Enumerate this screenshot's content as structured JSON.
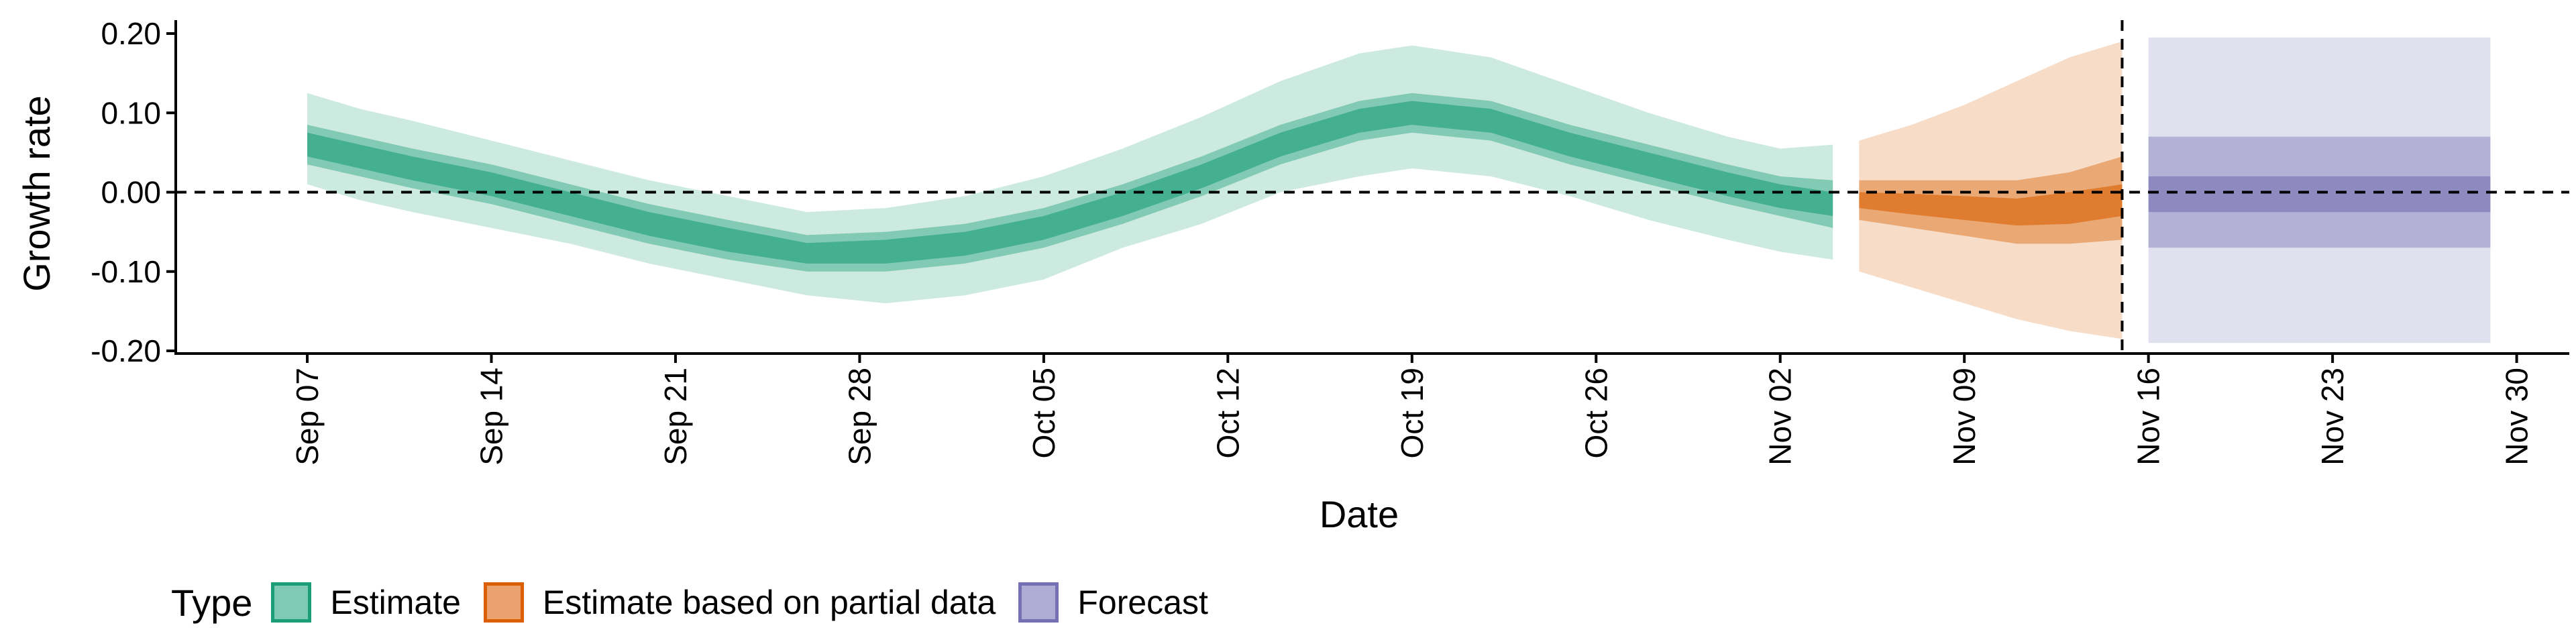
{
  "chart_data": {
    "type": "area",
    "xlabel": "Date",
    "ylabel": "Growth rate",
    "ylim": [
      -0.2,
      0.2
    ],
    "y_ticks": [
      "-0.20",
      "-0.10",
      "0.00",
      "0.10",
      "0.20"
    ],
    "y_tick_values": [
      -0.2,
      -0.1,
      0.0,
      0.1,
      0.2
    ],
    "x_range": [
      "2020-09-02",
      "2020-12-02"
    ],
    "x_ticks": [
      "Sep 07",
      "Sep 14",
      "Sep 21",
      "Sep 28",
      "Oct 05",
      "Oct 12",
      "Oct 19",
      "Oct 26",
      "Nov 02",
      "Nov 09",
      "Nov 16",
      "Nov 23",
      "Nov 30"
    ],
    "x_tick_dates": [
      "2020-09-07",
      "2020-09-14",
      "2020-09-21",
      "2020-09-28",
      "2020-10-05",
      "2020-10-12",
      "2020-10-19",
      "2020-10-26",
      "2020-11-02",
      "2020-11-09",
      "2020-11-16",
      "2020-11-23",
      "2020-11-30"
    ],
    "reference_lines": [
      {
        "orientation": "horizontal",
        "y": 0.0,
        "style": "dashed"
      },
      {
        "orientation": "vertical",
        "x": "2020-11-15",
        "style": "dashed"
      }
    ],
    "grid": false,
    "legend_position": "bottom",
    "series": [
      {
        "name": "Estimate",
        "color": "#1b9e77",
        "x": [
          "2020-09-07",
          "2020-09-09",
          "2020-09-11",
          "2020-09-14",
          "2020-09-17",
          "2020-09-20",
          "2020-09-23",
          "2020-09-26",
          "2020-09-29",
          "2020-10-02",
          "2020-10-05",
          "2020-10-08",
          "2020-10-11",
          "2020-10-14",
          "2020-10-17",
          "2020-10-19",
          "2020-10-22",
          "2020-10-25",
          "2020-10-28",
          "2020-10-31",
          "2020-11-02",
          "2020-11-04"
        ],
        "median": [
          0.06,
          0.045,
          0.03,
          0.01,
          -0.015,
          -0.04,
          -0.06,
          -0.077,
          -0.075,
          -0.065,
          -0.045,
          -0.015,
          0.02,
          0.06,
          0.09,
          0.1,
          0.09,
          0.06,
          0.035,
          0.01,
          -0.005,
          -0.015
        ],
        "lower_20": [
          0.045,
          0.03,
          0.015,
          -0.005,
          -0.03,
          -0.055,
          -0.075,
          -0.09,
          -0.09,
          -0.08,
          -0.06,
          -0.03,
          0.005,
          0.045,
          0.075,
          0.085,
          0.075,
          0.045,
          0.02,
          -0.005,
          -0.02,
          -0.03
        ],
        "upper_20": [
          0.075,
          0.06,
          0.045,
          0.025,
          0.0,
          -0.025,
          -0.045,
          -0.064,
          -0.06,
          -0.05,
          -0.03,
          0.0,
          0.035,
          0.075,
          0.105,
          0.115,
          0.105,
          0.075,
          0.05,
          0.025,
          0.01,
          0.0
        ],
        "lower_50": [
          0.035,
          0.02,
          0.005,
          -0.015,
          -0.04,
          -0.065,
          -0.085,
          -0.1,
          -0.1,
          -0.09,
          -0.07,
          -0.04,
          -0.005,
          0.035,
          0.065,
          0.075,
          0.065,
          0.035,
          0.01,
          -0.015,
          -0.03,
          -0.045
        ],
        "upper_50": [
          0.085,
          0.07,
          0.055,
          0.035,
          0.01,
          -0.015,
          -0.035,
          -0.054,
          -0.05,
          -0.04,
          -0.02,
          0.01,
          0.045,
          0.085,
          0.115,
          0.125,
          0.115,
          0.085,
          0.06,
          0.035,
          0.02,
          0.015
        ],
        "lower_90": [
          0.01,
          -0.01,
          -0.025,
          -0.045,
          -0.065,
          -0.09,
          -0.11,
          -0.13,
          -0.14,
          -0.13,
          -0.11,
          -0.07,
          -0.04,
          0.0,
          0.02,
          0.03,
          0.02,
          -0.005,
          -0.035,
          -0.06,
          -0.075,
          -0.085
        ],
        "upper_90": [
          0.125,
          0.105,
          0.09,
          0.065,
          0.04,
          0.015,
          -0.005,
          -0.025,
          -0.02,
          -0.005,
          0.02,
          0.055,
          0.095,
          0.14,
          0.175,
          0.185,
          0.17,
          0.135,
          0.1,
          0.07,
          0.055,
          0.06
        ]
      },
      {
        "name": "Estimate based on partial data",
        "color": "#d95f02",
        "x": [
          "2020-11-05",
          "2020-11-07",
          "2020-11-09",
          "2020-11-11",
          "2020-11-13",
          "2020-11-15"
        ],
        "median": [
          -0.01,
          -0.015,
          -0.02,
          -0.025,
          -0.02,
          -0.01
        ],
        "lower_20": [
          -0.02,
          -0.028,
          -0.035,
          -0.042,
          -0.04,
          -0.03
        ],
        "upper_20": [
          0.0,
          -0.002,
          -0.005,
          -0.008,
          0.0,
          0.01
        ],
        "lower_50": [
          -0.035,
          -0.045,
          -0.055,
          -0.065,
          -0.065,
          -0.06
        ],
        "upper_50": [
          0.015,
          0.015,
          0.015,
          0.015,
          0.025,
          0.045
        ],
        "lower_90": [
          -0.1,
          -0.12,
          -0.14,
          -0.16,
          -0.175,
          -0.185
        ],
        "upper_90": [
          0.065,
          0.085,
          0.11,
          0.14,
          0.17,
          0.19
        ]
      },
      {
        "name": "Forecast",
        "color": "#7570b3",
        "x": [
          "2020-11-16",
          "2020-11-29"
        ],
        "median": [
          0.0,
          0.0
        ],
        "lower_20": [
          -0.025,
          -0.025
        ],
        "upper_20": [
          0.02,
          0.02
        ],
        "lower_50": [
          -0.07,
          -0.07
        ],
        "upper_50": [
          0.07,
          0.07
        ],
        "lower_90": [
          -0.19,
          -0.19
        ],
        "upper_90": [
          0.195,
          0.195
        ]
      }
    ]
  },
  "legend": {
    "title": "Type",
    "items": [
      {
        "label": "Estimate",
        "fill": "#7fcab2",
        "border": "#1b9e77"
      },
      {
        "label": "Estimate based on partial data",
        "fill": "#eba26f",
        "border": "#d95f02"
      },
      {
        "label": "Forecast",
        "fill": "#aeabd4",
        "border": "#7570b3"
      }
    ]
  }
}
